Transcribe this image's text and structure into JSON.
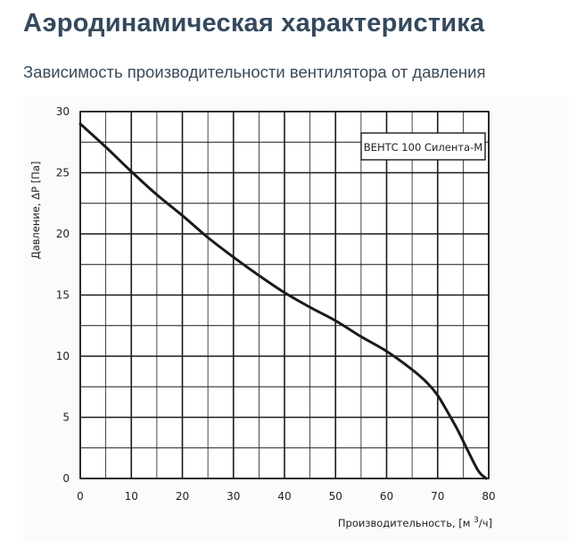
{
  "page": {
    "title": "Аэродинамическая характеристика",
    "subtitle": "Зависимость производительности вентилятора от давления"
  },
  "chart_data": {
    "type": "line",
    "xlabel": "Производительность, [м³/ч]",
    "xlabel_parts": {
      "prefix": "Производительность, [м ",
      "sup": "3",
      "suffix": "/ч]"
    },
    "ylabel": "Давление, ΔР [Па]",
    "xlim": [
      0,
      80
    ],
    "ylim": [
      0,
      30
    ],
    "xticks": [
      0,
      10,
      20,
      30,
      40,
      50,
      60,
      70,
      80
    ],
    "yticks": [
      0,
      5,
      10,
      15,
      20,
      25,
      30
    ],
    "grid": true,
    "legend_position": "top-right",
    "series": [
      {
        "name": "ВЕНТС 100 Силента-М",
        "color": "#1a1a1a",
        "x": [
          0,
          5,
          10,
          15,
          20,
          25,
          30,
          35,
          40,
          45,
          50,
          55,
          60,
          65,
          68,
          70,
          72,
          74,
          76,
          78,
          79.5
        ],
        "y": [
          29,
          27.1,
          25.1,
          23.2,
          21.5,
          19.7,
          18.1,
          16.6,
          15.2,
          14,
          12.9,
          11.6,
          10.4,
          8.9,
          7.8,
          6.8,
          5.4,
          3.9,
          2.2,
          0.6,
          0
        ]
      }
    ]
  }
}
